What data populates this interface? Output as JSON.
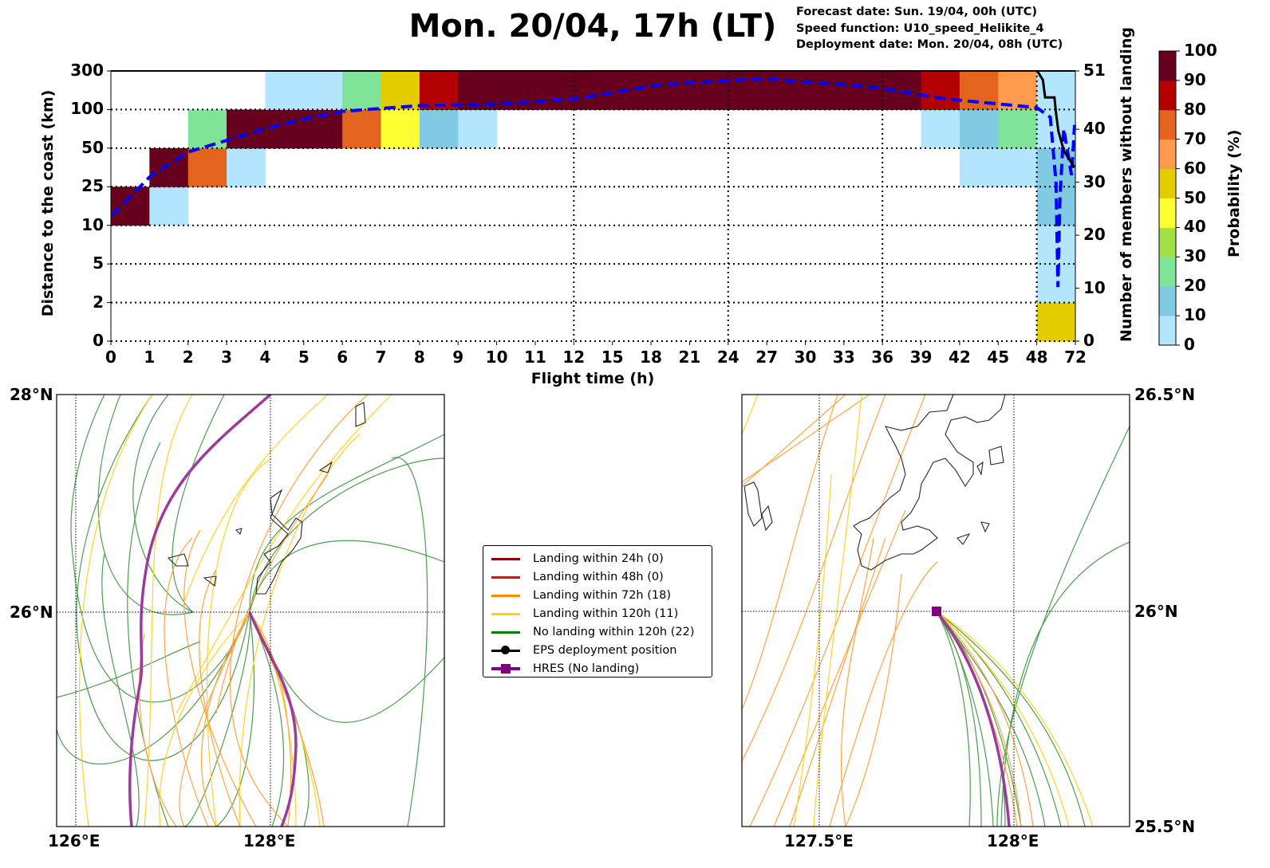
{
  "header": {
    "title": "Mon. 20/04, 17h (LT)",
    "forecast_date": "Forecast date: Sun. 19/04, 00h (UTC)",
    "speed_function": "Speed function: U10_speed_Helikite_4",
    "deployment_date": "Deployment date: Mon. 20/04, 08h (UTC)"
  },
  "chart_data": [
    {
      "type": "heatmap",
      "xlabel": "Flight time (h)",
      "ylabel": "Distance to the coast (km)",
      "y2label": "Number of members without landing",
      "x_edges": [
        0,
        1,
        2,
        3,
        4,
        5,
        6,
        7,
        8,
        9,
        10,
        11,
        12,
        15,
        18,
        21,
        24,
        27,
        30,
        33,
        36,
        39,
        42,
        45,
        48,
        72
      ],
      "x_tick_labels": [
        "0",
        "1",
        "2",
        "3",
        "4",
        "5",
        "6",
        "7",
        "8",
        "9",
        "10",
        "11",
        "12",
        "15",
        "18",
        "21",
        "24",
        "27",
        "30",
        "33",
        "36",
        "39",
        "42",
        "45",
        "48",
        "72"
      ],
      "y_edges": [
        0,
        2,
        5,
        10,
        25,
        50,
        100,
        300
      ],
      "y_tick_labels": [
        "0",
        "2",
        "5",
        "10",
        "25",
        "50",
        "100",
        "300"
      ],
      "y2_ticks": [
        "0",
        "10",
        "20",
        "30",
        "40",
        "51"
      ],
      "y2_range": [
        0,
        51
      ],
      "grid": "dotted at 12, 24, 36, 48 h and every distance edge",
      "probability_rows_bottom_to_top": [
        [
          null,
          null,
          null,
          null,
          null,
          null,
          null,
          null,
          null,
          null,
          null,
          null,
          null,
          null,
          null,
          null,
          null,
          null,
          null,
          null,
          null,
          null,
          null,
          null,
          55
        ],
        [
          null,
          null,
          null,
          null,
          null,
          null,
          null,
          null,
          null,
          null,
          null,
          null,
          null,
          null,
          null,
          null,
          null,
          null,
          null,
          null,
          null,
          null,
          null,
          null,
          5
        ],
        [
          null,
          null,
          null,
          null,
          null,
          null,
          null,
          null,
          null,
          null,
          null,
          null,
          null,
          null,
          null,
          null,
          null,
          null,
          null,
          null,
          null,
          null,
          null,
          null,
          5
        ],
        [
          95,
          5,
          null,
          null,
          null,
          null,
          null,
          null,
          null,
          null,
          null,
          null,
          null,
          null,
          null,
          null,
          null,
          null,
          null,
          null,
          null,
          null,
          null,
          null,
          15
        ],
        [
          null,
          95,
          75,
          5,
          null,
          null,
          null,
          null,
          null,
          null,
          null,
          null,
          null,
          null,
          null,
          null,
          null,
          null,
          null,
          null,
          null,
          null,
          5,
          5,
          15
        ],
        [
          null,
          null,
          25,
          95,
          95,
          95,
          75,
          45,
          15,
          5,
          null,
          null,
          null,
          null,
          null,
          null,
          null,
          null,
          null,
          null,
          null,
          5,
          15,
          25,
          5
        ],
        [
          null,
          null,
          null,
          null,
          5,
          5,
          25,
          55,
          85,
          95,
          95,
          95,
          95,
          95,
          95,
          95,
          95,
          95,
          95,
          95,
          95,
          85,
          75,
          65,
          5
        ]
      ],
      "mean_distance_curve_hours_rowpos": [
        [
          0.02,
          3.26
        ],
        [
          0.5,
          3.74
        ],
        [
          1,
          4.25
        ],
        [
          2,
          4.9
        ],
        [
          3,
          5.2
        ],
        [
          4,
          5.5
        ],
        [
          5,
          5.75
        ],
        [
          6,
          5.95
        ],
        [
          7,
          6.03
        ],
        [
          8,
          6.1
        ],
        [
          10,
          6.14
        ],
        [
          12,
          6.27
        ],
        [
          18.9,
          6.65
        ],
        [
          26.7,
          6.8
        ],
        [
          35.1,
          6.59
        ],
        [
          40.8,
          6.28
        ],
        [
          48,
          6.05
        ],
        [
          56.4,
          5.8
        ],
        [
          60,
          4.1
        ],
        [
          61.2,
          1.4
        ],
        [
          62.4,
          3.7
        ],
        [
          64.8,
          5.5
        ],
        [
          69.6,
          4.3
        ],
        [
          71.5,
          5.6
        ]
      ],
      "members_without_landing_hours": [
        [
          48.3,
          51
        ],
        [
          51.8,
          49.3
        ],
        [
          53.2,
          46
        ],
        [
          59,
          46
        ],
        [
          60,
          43
        ],
        [
          61.5,
          39.6
        ],
        [
          65,
          35.8
        ],
        [
          71.5,
          32.8
        ]
      ],
      "colorbar": {
        "label": "Probability (%)",
        "ticks": [
          "0",
          "10",
          "20",
          "30",
          "40",
          "50",
          "60",
          "70",
          "80",
          "90",
          "100"
        ],
        "colors": [
          "#b3e5fc",
          "#80cbe3",
          "#80e498",
          "#a2e044",
          "#ffff33",
          "#e3cc00",
          "#fe9a4d",
          "#e3641c",
          "#b30000",
          "#67001e"
        ]
      }
    }
  ],
  "left_map": {
    "lat_labels": [
      "28°N",
      "26°N"
    ],
    "lon_labels": [
      "126°E",
      "128°E"
    ]
  },
  "right_map": {
    "lat_labels": [
      "26.5°N",
      "26°N",
      "25.5°N"
    ],
    "lon_labels": [
      "127.5°E",
      "128°E"
    ]
  },
  "legend": {
    "items": [
      {
        "label": "Landing within 24h (0)",
        "color": "#8b0000"
      },
      {
        "label": "Landing within 48h (0)",
        "color": "#ff0000"
      },
      {
        "label": "Landing within 72h (18)",
        "color": "#ff8c00"
      },
      {
        "label": "Landing within 120h (11)",
        "color": "#ffd700"
      },
      {
        "label": "No landing within 120h (22)",
        "color": "#008000"
      },
      {
        "label": "EPS deployment position",
        "color": "#000000"
      },
      {
        "label": "HRES (No landing)",
        "color": "#800080"
      }
    ]
  }
}
